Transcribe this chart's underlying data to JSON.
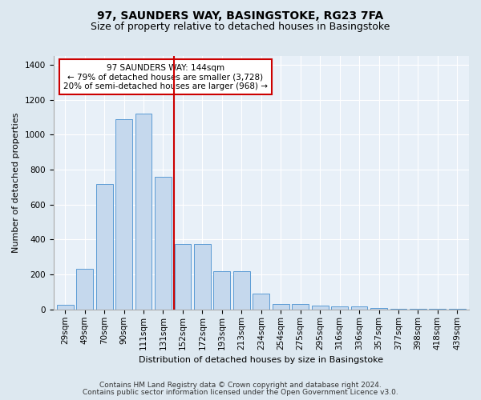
{
  "title": "97, SAUNDERS WAY, BASINGSTOKE, RG23 7FA",
  "subtitle": "Size of property relative to detached houses in Basingstoke",
  "xlabel": "Distribution of detached houses by size in Basingstoke",
  "ylabel": "Number of detached properties",
  "footnote1": "Contains HM Land Registry data © Crown copyright and database right 2024.",
  "footnote2": "Contains public sector information licensed under the Open Government Licence v3.0.",
  "categories": [
    "29sqm",
    "49sqm",
    "70sqm",
    "90sqm",
    "111sqm",
    "131sqm",
    "152sqm",
    "172sqm",
    "193sqm",
    "213sqm",
    "234sqm",
    "254sqm",
    "275sqm",
    "295sqm",
    "316sqm",
    "336sqm",
    "357sqm",
    "377sqm",
    "398sqm",
    "418sqm",
    "439sqm"
  ],
  "values": [
    28,
    232,
    718,
    1090,
    1120,
    760,
    375,
    375,
    220,
    220,
    90,
    30,
    30,
    22,
    18,
    18,
    10,
    5,
    5,
    5,
    5
  ],
  "bar_color": "#c5d8ed",
  "bar_edge_color": "#5b9bd5",
  "vline_x": 5.57,
  "vline_color": "#cc0000",
  "annotation_text": "97 SAUNDERS WAY: 144sqm\n← 79% of detached houses are smaller (3,728)\n20% of semi-detached houses are larger (968) →",
  "annotation_box_color": "#ffffff",
  "annotation_box_edge": "#cc0000",
  "bg_color": "#dde8f0",
  "plot_bg_color": "#e8f0f8",
  "ylim": [
    0,
    1450
  ],
  "yticks": [
    0,
    200,
    400,
    600,
    800,
    1000,
    1200,
    1400
  ],
  "title_fontsize": 10,
  "subtitle_fontsize": 9,
  "label_fontsize": 8,
  "tick_fontsize": 7.5,
  "footnote_fontsize": 6.5,
  "annotation_fontsize": 7.5
}
